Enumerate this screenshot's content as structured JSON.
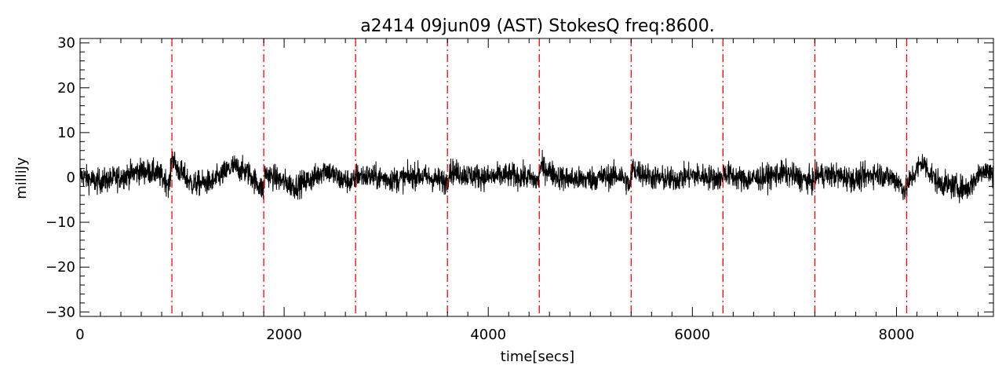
{
  "chart_data": {
    "type": "line",
    "title": "a2414 09jun09 (AST) StokesQ freq:8600.",
    "xlabel": "time[secs]",
    "ylabel": "milliJy",
    "xlim": [
      0,
      8950
    ],
    "ylim": [
      -31,
      31
    ],
    "xticks": [
      0,
      2000,
      4000,
      6000,
      8000
    ],
    "xtick_labels": [
      "0",
      "2000",
      "4000",
      "6000",
      "8000"
    ],
    "yticks": [
      -30,
      -20,
      -10,
      0,
      10,
      20,
      30
    ],
    "ytick_labels": [
      "−30",
      "−20",
      "−10",
      "0",
      "10",
      "20",
      "30"
    ],
    "grid": false,
    "series": [
      {
        "x": [
          0,
          150,
          300,
          450,
          600,
          750,
          880,
          900,
          950,
          1100,
          1300,
          1500,
          1650,
          1800,
          1810,
          1900,
          2100,
          2300,
          2400,
          2550,
          2690,
          2710,
          2900,
          3100,
          3300,
          3500,
          3590,
          3620,
          3800,
          4000,
          4200,
          4400,
          4490,
          4510,
          4700,
          4900,
          5100,
          5300,
          5390,
          5410,
          5600,
          5800,
          6000,
          6200,
          6290,
          6310,
          6500,
          6700,
          6900,
          7100,
          7190,
          7210,
          7400,
          7600,
          7800,
          8000,
          8090,
          8110,
          8250,
          8400,
          8550,
          8700,
          8850,
          8950
        ],
        "values": [
          0.5,
          -1.0,
          -0.5,
          0.5,
          1.5,
          1.0,
          -1.5,
          5.0,
          2.0,
          -1.5,
          -1.0,
          2.5,
          1.0,
          -3.0,
          1.0,
          0.0,
          -2.0,
          0.0,
          2.0,
          -0.5,
          -1.0,
          0.5,
          0.0,
          -0.5,
          0.5,
          -0.5,
          -1.0,
          1.5,
          0.5,
          0.0,
          0.5,
          0.0,
          -1.0,
          2.5,
          0.0,
          -0.5,
          0.0,
          0.5,
          -2.0,
          2.0,
          0.0,
          -0.5,
          0.5,
          0.0,
          -0.5,
          1.0,
          -0.5,
          0.0,
          1.0,
          -0.5,
          -1.0,
          0.5,
          0.5,
          -0.5,
          1.0,
          -0.5,
          -3.0,
          -1.5,
          3.5,
          -1.0,
          -2.0,
          -2.5,
          2.0,
          0.5
        ],
        "noise_amplitude": 1.4,
        "color": "#000000"
      }
    ],
    "vlines": {
      "x": [
        900,
        1800,
        2700,
        3600,
        4500,
        5400,
        6300,
        7200,
        8100
      ],
      "color": "#ff0000",
      "style": "dash-dot"
    }
  }
}
